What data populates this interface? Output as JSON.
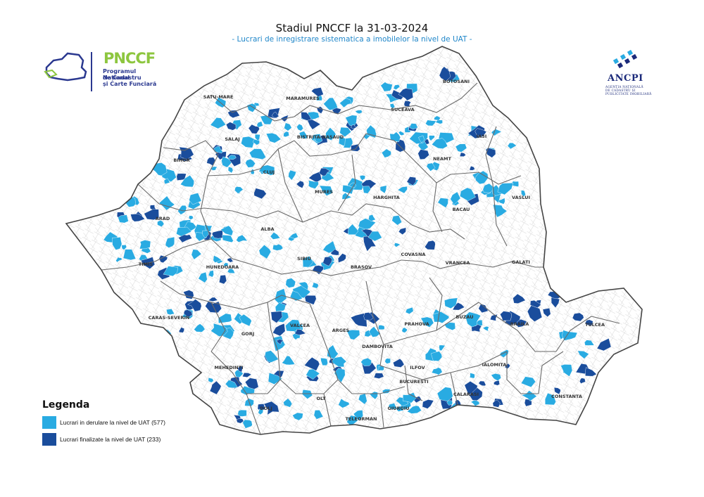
{
  "header": {
    "title": "Stadiul PNCCF la 31-03-2024",
    "subtitle": "- Lucrari de inregistrare sistematica a imobilelor la nivel de UAT -"
  },
  "logo_pnccf": {
    "word": "PNCCF",
    "line1": "Programul Național",
    "line2": "de Cadastru",
    "line3": "și Carte Funciară",
    "colors": {
      "word": "#8dc63f",
      "text": "#2b3990"
    }
  },
  "logo_ancpi": {
    "name": "ANCPI",
    "sub_line1": "AGENȚIA NAȚIONALĂ",
    "sub_line2": "DE CADASTRU ȘI",
    "sub_line3": "PUBLICITATE IMOBILIARĂ",
    "color": "#1b2a7a"
  },
  "map": {
    "colors": {
      "in_progress": "#29abe2",
      "finalized": "#1a4d9c",
      "county_border": "#555555",
      "uat_border": "#cfcfcf"
    },
    "counties": [
      "SATU-MARE",
      "MARAMURES",
      "BOTOSANI",
      "SUCEAVA",
      "SALAJ",
      "BISTRITA-NASAUD",
      "IASI",
      "BIHOR",
      "CLUJ",
      "NEAMT",
      "MURES",
      "HARGHITA",
      "VASLUI",
      "ARAD",
      "ALBA",
      "BACAU",
      "SIBIU",
      "COVASNA",
      "BRASOV",
      "TIMIS",
      "HUNEDOARA",
      "VRANCEA",
      "GALATI",
      "CARAS-SEVERIN",
      "GORJ",
      "VALCEA",
      "ARGES",
      "PRAHOVA",
      "BUZAU",
      "BRAILA",
      "TULCEA",
      "DAMBOVITA",
      "MEHEDINTI",
      "ILFOV",
      "IALOMITA",
      "BUCURESTI",
      "CALARASI",
      "CONSTANTA",
      "DOLJ",
      "OLT",
      "GIURGIU",
      "TELEORMAN"
    ]
  },
  "legend": {
    "title": "Legenda",
    "items": [
      {
        "label": "Lucrari in derulare la nivel de UAT (577)",
        "color": "#29abe2",
        "count": 577
      },
      {
        "label": "Lucrari finalizate la nivel de UAT (233)",
        "color": "#1a4d9c",
        "count": 233
      }
    ]
  }
}
